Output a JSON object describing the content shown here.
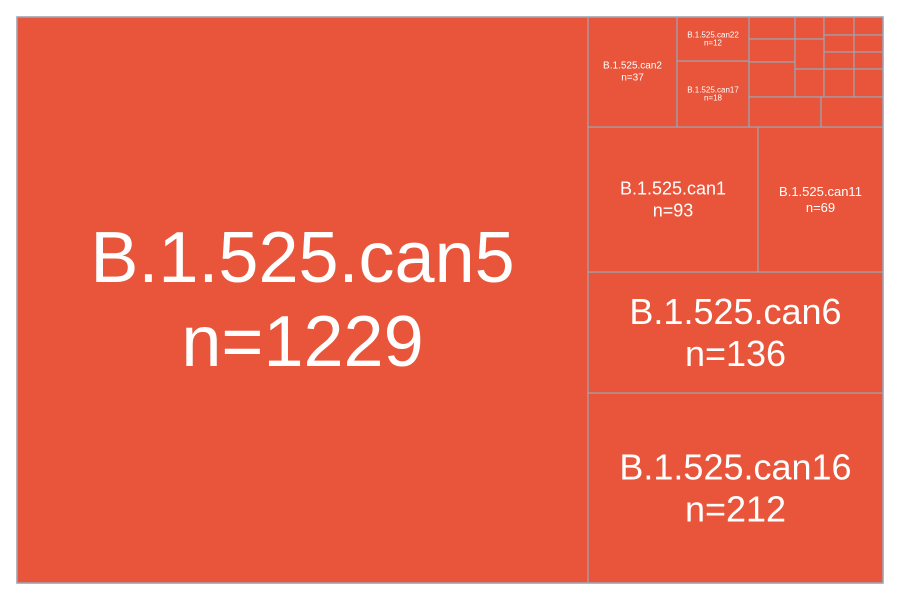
{
  "chart_data": {
    "type": "treemap",
    "fill_color": "#e8553a",
    "border_color": "#a0a4b0",
    "cells": [
      {
        "name": "B.1.525.can5",
        "value": 1229,
        "label": "n=1229"
      },
      {
        "name": "B.1.525.can16",
        "value": 212,
        "label": "n=212"
      },
      {
        "name": "B.1.525.can6",
        "value": 136,
        "label": "n=136"
      },
      {
        "name": "B.1.525.can1",
        "value": 93,
        "label": "n=93"
      },
      {
        "name": "B.1.525.can11",
        "value": 69,
        "label": "n=69"
      },
      {
        "name": "B.1.525.can2",
        "value": 37,
        "label": "n=37"
      },
      {
        "name": "B.1.525.can17",
        "value": 18,
        "label": "n=18"
      },
      {
        "name": "B.1.525.can22",
        "value": 12,
        "label": "n=12"
      }
    ]
  }
}
